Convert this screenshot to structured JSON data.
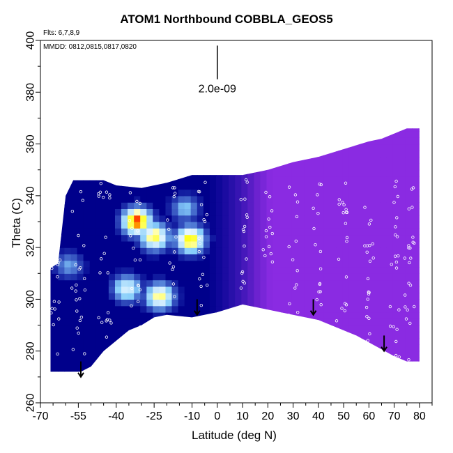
{
  "chart_data": {
    "type": "heatmap",
    "title": "ATOM1 Northbound COBBLA_GEOS5",
    "annotations": {
      "flights": "Flts: 6,7,8,9",
      "dates": "MMDD: 0812,0815,0817,0820",
      "scale_label": "2.0e-09"
    },
    "xlabel": "Latitude (deg N)",
    "ylabel": "Theta (C)",
    "xlim": [
      -70,
      85
    ],
    "ylim": [
      260,
      400
    ],
    "x_ticks": [
      -70,
      -55,
      -40,
      -25,
      -10,
      0,
      10,
      20,
      30,
      40,
      50,
      60,
      70,
      80
    ],
    "y_ticks": [
      260,
      280,
      300,
      320,
      340,
      360,
      380,
      400
    ],
    "scale_bar": {
      "x": 0,
      "y_top": 398,
      "y_bottom": 385
    },
    "arrows": [
      {
        "x": -54,
        "y_top": 276,
        "y_bottom": 270
      },
      {
        "x": -8,
        "y_top": 300,
        "y_bottom": 294
      },
      {
        "x": 38,
        "y_top": 300,
        "y_bottom": 294
      },
      {
        "x": 66,
        "y_top": 286,
        "y_bottom": 280
      }
    ],
    "hotspots": [
      {
        "lat": -33,
        "theta": 329,
        "level": 1.0
      },
      {
        "lat": -26,
        "theta": 323,
        "level": 0.75
      },
      {
        "lat": -37,
        "theta": 303,
        "level": 0.55
      },
      {
        "lat": -24,
        "theta": 300,
        "level": 0.7
      },
      {
        "lat": -12,
        "theta": 322,
        "level": 0.85
      },
      {
        "lat": -14,
        "theta": 334,
        "level": 0.35
      },
      {
        "lat": -60,
        "theta": 312,
        "level": 0.3
      }
    ],
    "grid": false,
    "colors": {
      "low": "#00008b",
      "mid": "#4169e1",
      "high": "#ffff00",
      "max": "#ff0000",
      "background_field": "#8a2be2",
      "flight_track": "#ffffff"
    }
  }
}
